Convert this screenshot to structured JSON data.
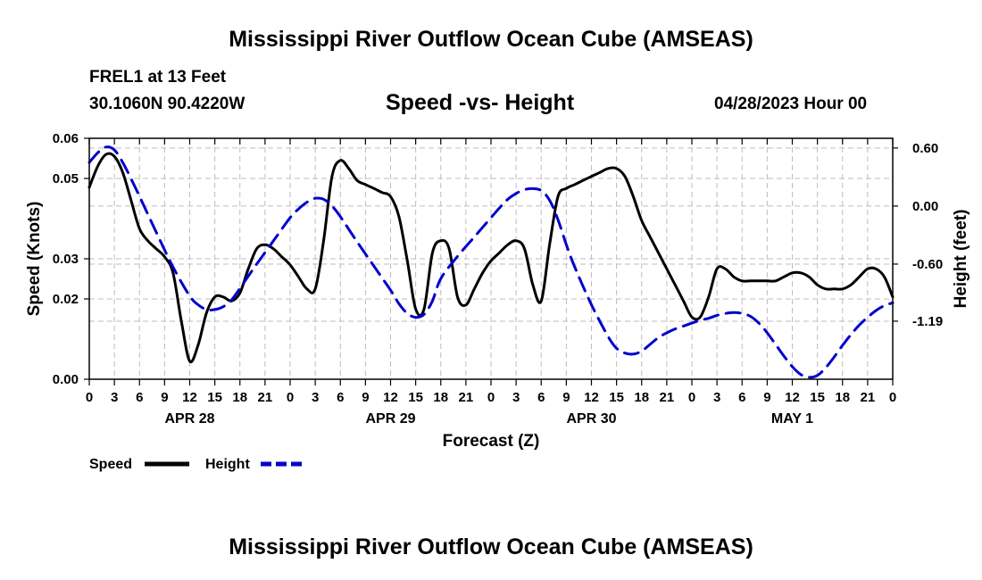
{
  "header": {
    "title_top": "Mississippi River Outflow Ocean Cube (AMSEAS)",
    "station": "FREL1 at 13 Feet",
    "coords": "30.1060N  90.4220W",
    "subtitle": "Speed -vs- Height",
    "datetime": "04/28/2023 Hour 00",
    "title_bottom": "Mississippi River Outflow Ocean Cube (AMSEAS)"
  },
  "chart_data": {
    "type": "line",
    "title": "Speed -vs- Height",
    "xlabel": "Forecast (Z)",
    "ylabel_left": "Speed (Knots)",
    "ylabel_right": "Height (feet)",
    "x_range": [
      0,
      96
    ],
    "y_left_range": [
      0.0,
      0.06
    ],
    "y_right_range": [
      -1.79,
      0.7
    ],
    "left_ticks": [
      {
        "v": 0.0,
        "label": "0.00"
      },
      {
        "v": 0.02,
        "label": "0.02"
      },
      {
        "v": 0.03,
        "label": "0.03"
      },
      {
        "v": 0.05,
        "label": "0.05"
      },
      {
        "v": 0.06,
        "label": "0.06"
      }
    ],
    "right_ticks": [
      {
        "v": 0.6,
        "label": "0.60"
      },
      {
        "v": 0.0,
        "label": "0.00"
      },
      {
        "v": -0.6,
        "label": "-0.60"
      },
      {
        "v": -1.19,
        "label": "-1.19"
      }
    ],
    "x_tick_labels": [
      "0",
      "3",
      "6",
      "9",
      "12",
      "15",
      "18",
      "21",
      "0",
      "3",
      "6",
      "9",
      "12",
      "15",
      "18",
      "21",
      "0",
      "3",
      "6",
      "9",
      "12",
      "15",
      "18",
      "21",
      "0",
      "3",
      "6",
      "9",
      "12",
      "15",
      "18",
      "21",
      "0"
    ],
    "day_labels": [
      {
        "hour": 12,
        "label": "APR 28"
      },
      {
        "hour": 36,
        "label": "APR 29"
      },
      {
        "hour": 60,
        "label": "APR 30"
      },
      {
        "hour": 84,
        "label": "MAY 1"
      }
    ],
    "grid": true,
    "series": [
      {
        "name": "Speed",
        "color": "#000000",
        "style": "solid",
        "axis": "left",
        "points": [
          [
            0,
            0.0478
          ],
          [
            1,
            0.053
          ],
          [
            2,
            0.056
          ],
          [
            3,
            0.0555
          ],
          [
            4,
            0.0515
          ],
          [
            5,
            0.0445
          ],
          [
            6,
            0.0375
          ],
          [
            7,
            0.0345
          ],
          [
            8,
            0.0325
          ],
          [
            9,
            0.0305
          ],
          [
            10,
            0.0265
          ],
          [
            11,
            0.0145
          ],
          [
            12,
            0.0045
          ],
          [
            13,
            0.0085
          ],
          [
            14,
            0.0165
          ],
          [
            15,
            0.0205
          ],
          [
            16,
            0.0205
          ],
          [
            17,
            0.0195
          ],
          [
            18,
            0.0215
          ],
          [
            19,
            0.0275
          ],
          [
            20,
            0.0325
          ],
          [
            21,
            0.0335
          ],
          [
            22,
            0.0325
          ],
          [
            23,
            0.0305
          ],
          [
            24,
            0.0285
          ],
          [
            25,
            0.0255
          ],
          [
            26,
            0.0225
          ],
          [
            27,
            0.0225
          ],
          [
            28,
            0.0345
          ],
          [
            29,
            0.0505
          ],
          [
            30,
            0.0545
          ],
          [
            31,
            0.0525
          ],
          [
            32,
            0.0495
          ],
          [
            33,
            0.0485
          ],
          [
            34,
            0.0475
          ],
          [
            35,
            0.0465
          ],
          [
            36,
            0.0455
          ],
          [
            37,
            0.0405
          ],
          [
            38,
            0.0295
          ],
          [
            39,
            0.0175
          ],
          [
            40,
            0.0175
          ],
          [
            41,
            0.0315
          ],
          [
            42,
            0.0345
          ],
          [
            43,
            0.0325
          ],
          [
            44,
            0.0205
          ],
          [
            45,
            0.0185
          ],
          [
            46,
            0.0225
          ],
          [
            47,
            0.0265
          ],
          [
            48,
            0.0295
          ],
          [
            49,
            0.0315
          ],
          [
            50,
            0.0335
          ],
          [
            51,
            0.0345
          ],
          [
            52,
            0.0325
          ],
          [
            53,
            0.0235
          ],
          [
            54,
            0.0195
          ],
          [
            55,
            0.0335
          ],
          [
            56,
            0.0455
          ],
          [
            57,
            0.0475
          ],
          [
            58,
            0.0485
          ],
          [
            59,
            0.0495
          ],
          [
            60,
            0.0505
          ],
          [
            61,
            0.0515
          ],
          [
            62,
            0.0525
          ],
          [
            63,
            0.0525
          ],
          [
            64,
            0.0505
          ],
          [
            65,
            0.0455
          ],
          [
            66,
            0.0395
          ],
          [
            67,
            0.0355
          ],
          [
            68,
            0.0315
          ],
          [
            69,
            0.0275
          ],
          [
            70,
            0.0235
          ],
          [
            71,
            0.0195
          ],
          [
            72,
            0.0155
          ],
          [
            73,
            0.0155
          ],
          [
            74,
            0.0205
          ],
          [
            75,
            0.0275
          ],
          [
            76,
            0.0275
          ],
          [
            77,
            0.0255
          ],
          [
            78,
            0.0245
          ],
          [
            79,
            0.0245
          ],
          [
            80,
            0.0245
          ],
          [
            81,
            0.0245
          ],
          [
            82,
            0.0245
          ],
          [
            83,
            0.0255
          ],
          [
            84,
            0.0265
          ],
          [
            85,
            0.0265
          ],
          [
            86,
            0.0255
          ],
          [
            87,
            0.0235
          ],
          [
            88,
            0.0225
          ],
          [
            89,
            0.0225
          ],
          [
            90,
            0.0225
          ],
          [
            91,
            0.0235
          ],
          [
            92,
            0.0255
          ],
          [
            93,
            0.0275
          ],
          [
            94,
            0.0275
          ],
          [
            95,
            0.0255
          ],
          [
            96,
            0.0205
          ]
        ]
      },
      {
        "name": "Height",
        "color": "#0000cc",
        "style": "dashed",
        "axis": "right",
        "points": [
          [
            0,
            0.45
          ],
          [
            1,
            0.55
          ],
          [
            2,
            0.61
          ],
          [
            3,
            0.58
          ],
          [
            4,
            0.45
          ],
          [
            5,
            0.28
          ],
          [
            6,
            0.1
          ],
          [
            8,
            -0.27
          ],
          [
            10,
            -0.63
          ],
          [
            12,
            -0.93
          ],
          [
            13,
            -1.02
          ],
          [
            14,
            -1.07
          ],
          [
            15,
            -1.07
          ],
          [
            16,
            -1.04
          ],
          [
            17,
            -0.97
          ],
          [
            18,
            -0.85
          ],
          [
            20,
            -0.6
          ],
          [
            22,
            -0.36
          ],
          [
            24,
            -0.12
          ],
          [
            25,
            -0.03
          ],
          [
            26,
            0.04
          ],
          [
            27,
            0.08
          ],
          [
            28,
            0.07
          ],
          [
            29,
            0.0
          ],
          [
            30,
            -0.11
          ],
          [
            32,
            -0.37
          ],
          [
            34,
            -0.62
          ],
          [
            36,
            -0.87
          ],
          [
            37,
            -1.01
          ],
          [
            38,
            -1.11
          ],
          [
            39,
            -1.15
          ],
          [
            40,
            -1.12
          ],
          [
            41,
            -0.98
          ],
          [
            42,
            -0.75
          ],
          [
            44,
            -0.52
          ],
          [
            46,
            -0.32
          ],
          [
            48,
            -0.12
          ],
          [
            49,
            -0.02
          ],
          [
            50,
            0.07
          ],
          [
            51,
            0.13
          ],
          [
            52,
            0.17
          ],
          [
            53,
            0.18
          ],
          [
            54,
            0.16
          ],
          [
            55,
            0.06
          ],
          [
            56,
            -0.14
          ],
          [
            57,
            -0.4
          ],
          [
            58,
            -0.63
          ],
          [
            60,
            -1.02
          ],
          [
            62,
            -1.35
          ],
          [
            63,
            -1.47
          ],
          [
            64,
            -1.52
          ],
          [
            65,
            -1.53
          ],
          [
            66,
            -1.5
          ],
          [
            67,
            -1.43
          ],
          [
            68,
            -1.36
          ],
          [
            69,
            -1.31
          ],
          [
            70,
            -1.27
          ],
          [
            71,
            -1.24
          ],
          [
            72,
            -1.21
          ],
          [
            73,
            -1.18
          ],
          [
            74,
            -1.16
          ],
          [
            75,
            -1.13
          ],
          [
            76,
            -1.11
          ],
          [
            77,
            -1.1
          ],
          [
            78,
            -1.11
          ],
          [
            79,
            -1.14
          ],
          [
            80,
            -1.21
          ],
          [
            81,
            -1.31
          ],
          [
            82,
            -1.43
          ],
          [
            83,
            -1.55
          ],
          [
            84,
            -1.66
          ],
          [
            85,
            -1.74
          ],
          [
            86,
            -1.77
          ],
          [
            87,
            -1.75
          ],
          [
            88,
            -1.67
          ],
          [
            89,
            -1.56
          ],
          [
            90,
            -1.44
          ],
          [
            91,
            -1.33
          ],
          [
            92,
            -1.23
          ],
          [
            93,
            -1.15
          ],
          [
            94,
            -1.08
          ],
          [
            95,
            -1.03
          ],
          [
            96,
            -1.0
          ]
        ]
      }
    ],
    "legend": [
      {
        "label": "Speed",
        "color": "#000000",
        "style": "solid"
      },
      {
        "label": "Height",
        "color": "#0000cc",
        "style": "dashed"
      }
    ],
    "legend_position": "bottom-left"
  }
}
